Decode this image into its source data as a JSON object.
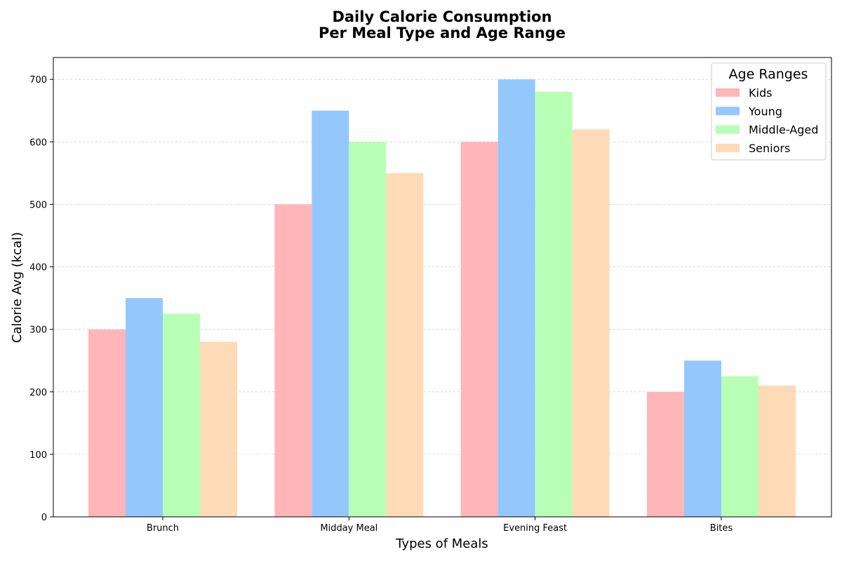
{
  "chart_data": {
    "type": "bar",
    "title_line1": "Daily Calorie Consumption",
    "title_line2": "Per Meal Type and Age Range",
    "xlabel": "Types of Meals",
    "ylabel": "Calorie Avg (kcal)",
    "categories": [
      "Brunch",
      "Midday Meal",
      "Evening Feast",
      "Bites"
    ],
    "series": [
      {
        "name": "Kids",
        "color": "#FFB6B9",
        "values": [
          300,
          500,
          600,
          200
        ]
      },
      {
        "name": "Young",
        "color": "#94C8FD",
        "values": [
          350,
          650,
          700,
          250
        ]
      },
      {
        "name": "Middle-Aged",
        "color": "#B7FFB4",
        "values": [
          325,
          600,
          680,
          225
        ]
      },
      {
        "name": "Seniors",
        "color": "#FEDAB7",
        "values": [
          280,
          550,
          620,
          210
        ]
      }
    ],
    "ylim": [
      0,
      735
    ],
    "yticks": [
      0,
      100,
      200,
      300,
      400,
      500,
      600,
      700
    ],
    "grid": true,
    "legend": {
      "title": "Age Ranges",
      "placement": "top-right"
    }
  }
}
